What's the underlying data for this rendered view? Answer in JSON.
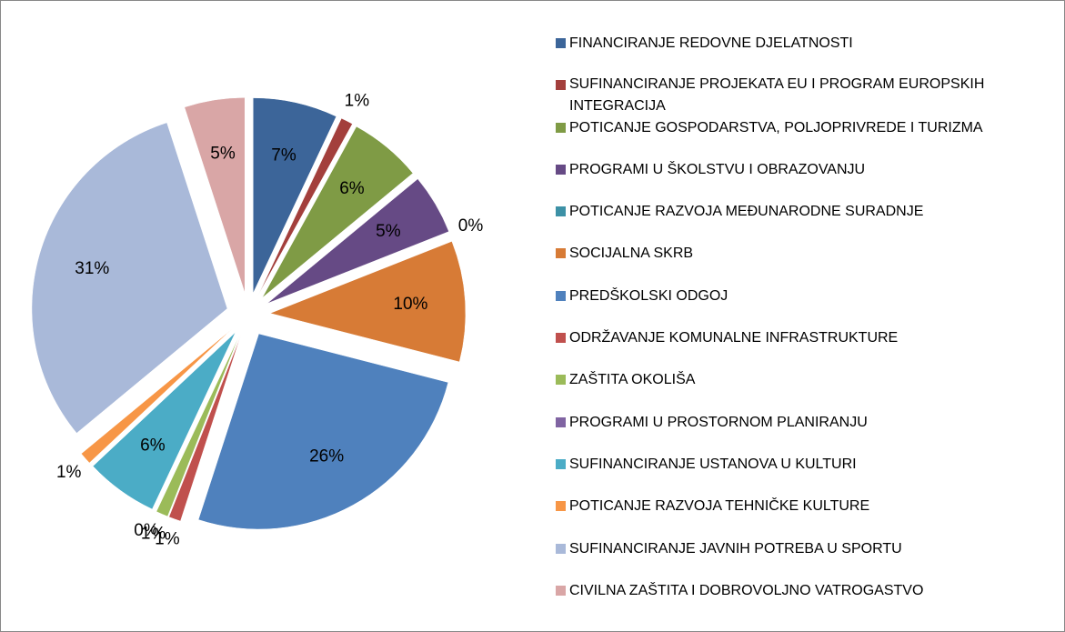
{
  "chart_data": {
    "type": "pie",
    "categories": [
      "FINANCIRANJE REDOVNE DJELATNOSTI",
      "SUFINANCIRANJE PROJEKATA EU I PROGRAM EUROPSKIH INTEGRACIJA",
      "POTICANJE GOSPODARSTVA, POLJOPRIVREDE I TURIZMA",
      "PROGRAMI U ŠKOLSTVU I OBRAZOVANJU",
      "POTICANJE RAZVOJA MEĐUNARODNE SURADNJE",
      "SOCIJALNA SKRB",
      "PREDŠKOLSKI ODGOJ",
      "ODRŽAVANJE KOMUNALNE INFRASTRUKTURE",
      "ZAŠTITA OKOLIŠA",
      "PROGRAMI U PROSTORNOM PLANIRANJU",
      "SUFINANCIRANJE USTANOVA U KULTURI",
      "POTICANJE RAZVOJA TEHNIČKE KULTURE",
      "SUFINANCIRANJE JAVNIH POTREBA U SPORTU",
      "CIVILNA ZAŠTITA I DOBROVOLJNO VATROGASTVO"
    ],
    "values": [
      7,
      1,
      6,
      5,
      0,
      10,
      26,
      1,
      1,
      0,
      6,
      1,
      31,
      5
    ],
    "value_labels": [
      "7%",
      "1%",
      "6%",
      "5%",
      "0%",
      "10%",
      "26%",
      "1%",
      "1%",
      "0%",
      "6%",
      "1%",
      "31%",
      "5%"
    ],
    "colors": [
      "#3c6599",
      "#a33f3c",
      "#7f9b45",
      "#664a85",
      "#3d91a6",
      "#d77b36",
      "#4f81bd",
      "#c0504d",
      "#9bbb59",
      "#8064a2",
      "#4bacc6",
      "#f79646",
      "#a9b9d9",
      "#d9a6a6"
    ],
    "legend": "right"
  }
}
